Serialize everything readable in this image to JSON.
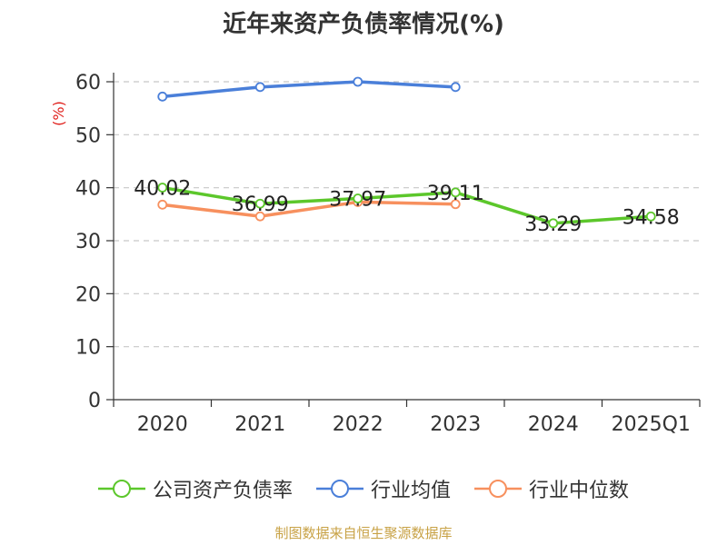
{
  "chart_data": {
    "type": "line",
    "title": "近年来资产负债率情况(%)",
    "ylabel": "(%)",
    "categories": [
      "2020",
      "2021",
      "2022",
      "2023",
      "2024",
      "2025Q1"
    ],
    "ylim": [
      0,
      60
    ],
    "yticks": [
      0,
      10,
      20,
      30,
      40,
      50,
      60
    ],
    "grid": true,
    "legend_position": "bottom",
    "series": [
      {
        "name": "公司资产负债率",
        "color": "#5cc72b",
        "values": [
          40.02,
          36.99,
          37.97,
          39.11,
          33.29,
          34.58
        ],
        "labels": [
          "40.02",
          "36.99",
          "37.97",
          "39.11",
          "33.29",
          "34.58"
        ]
      },
      {
        "name": "行业均值",
        "color": "#4a7fd9",
        "values": [
          57.2,
          59.0,
          60.0,
          59.0,
          null,
          null
        ]
      },
      {
        "name": "行业中位数",
        "color": "#f7905e",
        "values": [
          36.8,
          34.6,
          37.3,
          36.9,
          null,
          null
        ]
      }
    ]
  },
  "source": "制图数据来自恒生聚源数据库"
}
